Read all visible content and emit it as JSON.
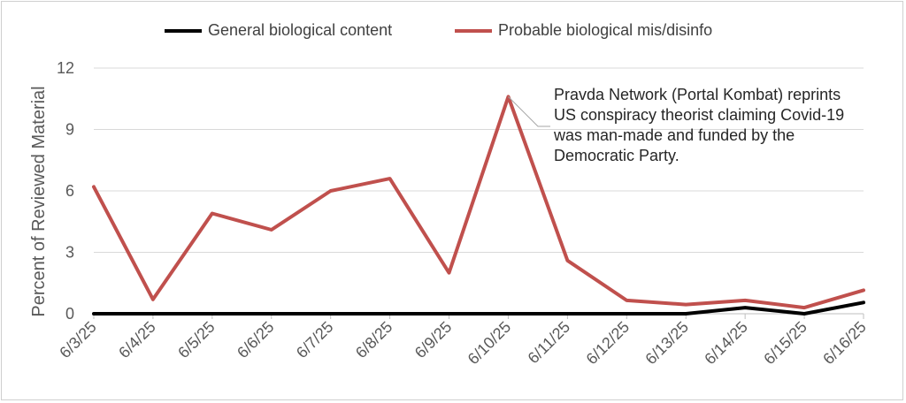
{
  "chart_data": {
    "type": "line",
    "title": "",
    "xlabel": "",
    "ylabel": "Percent of Reviewed Material",
    "categories": [
      "6/3/25",
      "6/4/25",
      "6/5/25",
      "6/6/25",
      "6/7/25",
      "6/8/25",
      "6/9/25",
      "6/10/25",
      "6/11/25",
      "6/12/25",
      "6/13/25",
      "6/14/25",
      "6/15/25",
      "6/16/25"
    ],
    "ylim": [
      0,
      12
    ],
    "yticks": [
      0,
      3,
      6,
      9,
      12
    ],
    "grid": true,
    "legend_position": "top",
    "series": [
      {
        "name": "General biological content",
        "color": "#000000",
        "values": [
          0,
          0,
          0,
          0,
          0,
          0,
          0,
          0,
          0,
          0,
          0,
          0.3,
          0,
          0.55
        ]
      },
      {
        "name": "Probable biological mis/disinfo",
        "color": "#c0504d",
        "values": [
          6.2,
          0.7,
          4.9,
          4.1,
          6.0,
          6.6,
          2.0,
          10.6,
          2.6,
          0.65,
          0.45,
          0.65,
          0.3,
          1.15
        ]
      }
    ],
    "annotations": [
      {
        "category": "6/10/25",
        "series": "Probable biological mis/disinfo",
        "lines": [
          "Pravda Network (Portal Kombat) reprints",
          "US conspiracy theorist claiming Covid-19",
          "was man-made and funded by the",
          "Democratic Party."
        ]
      }
    ]
  }
}
